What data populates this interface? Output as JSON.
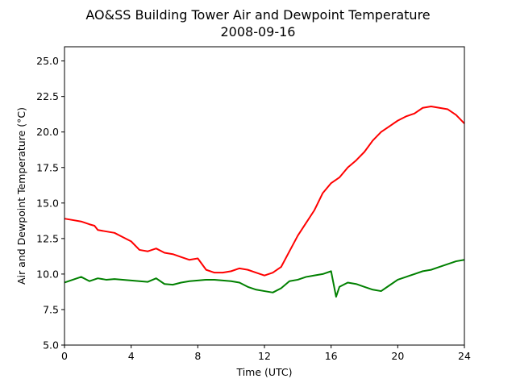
{
  "chart_data": {
    "type": "line",
    "title": "AO&SS Building Tower Air and Dewpoint Temperature",
    "subtitle": "2008-09-16",
    "xlabel": "Time (UTC)",
    "ylabel": "Air and Dewpoint Temperature (°C)",
    "xlim": [
      0,
      24
    ],
    "ylim": [
      5.0,
      26.0
    ],
    "xticks": [
      0,
      4,
      8,
      12,
      16,
      20,
      24
    ],
    "xtick_labels": [
      "0",
      "4",
      "8",
      "12",
      "16",
      "20",
      "24"
    ],
    "yticks": [
      5.0,
      7.5,
      10.0,
      12.5,
      15.0,
      17.5,
      20.0,
      22.5,
      25.0
    ],
    "ytick_labels": [
      "5.0",
      "7.5",
      "10.0",
      "12.5",
      "15.0",
      "17.5",
      "20.0",
      "22.5",
      "25.0"
    ],
    "grid": false,
    "series": [
      {
        "color": "#ff0000",
        "x": [
          0,
          0.5,
          1.0,
          1.5,
          1.8,
          2.0,
          2.5,
          3.0,
          3.5,
          4.0,
          4.5,
          5.0,
          5.5,
          6.0,
          6.5,
          7.0,
          7.5,
          8.0,
          8.5,
          9.0,
          9.5,
          10.0,
          10.5,
          11.0,
          11.5,
          12.0,
          12.5,
          13.0,
          13.5,
          14.0,
          14.5,
          15.0,
          15.5,
          16.0,
          16.5,
          17.0,
          17.5,
          18.0,
          18.5,
          19.0,
          19.5,
          20.0,
          20.5,
          21.0,
          21.5,
          22.0,
          22.5,
          23.0,
          23.5,
          24.0
        ],
        "y": [
          13.9,
          13.8,
          13.7,
          13.5,
          13.4,
          13.1,
          13.0,
          12.9,
          12.6,
          12.3,
          11.7,
          11.6,
          11.8,
          11.5,
          11.4,
          11.2,
          11.0,
          11.1,
          10.3,
          10.1,
          10.1,
          10.2,
          10.4,
          10.3,
          10.1,
          9.9,
          10.1,
          10.5,
          11.6,
          12.7,
          13.6,
          14.5,
          15.7,
          16.4,
          16.8,
          17.5,
          18.0,
          18.6,
          19.4,
          20.0,
          20.4,
          20.8,
          21.1,
          21.3,
          21.7,
          21.8,
          21.7,
          21.6,
          21.2,
          20.6
        ]
      },
      {
        "color": "#008000",
        "x": [
          0,
          0.5,
          1.0,
          1.5,
          2.0,
          2.5,
          3.0,
          3.5,
          4.0,
          4.5,
          5.0,
          5.5,
          6.0,
          6.5,
          7.0,
          7.5,
          8.0,
          8.5,
          9.0,
          9.5,
          10.0,
          10.5,
          11.0,
          11.5,
          12.0,
          12.5,
          13.0,
          13.5,
          14.0,
          14.5,
          15.0,
          15.5,
          16.0,
          16.3,
          16.5,
          17.0,
          17.5,
          18.0,
          18.5,
          19.0,
          19.5,
          20.0,
          20.5,
          21.0,
          21.5,
          22.0,
          22.5,
          23.0,
          23.5,
          24.0
        ],
        "y": [
          9.4,
          9.6,
          9.8,
          9.5,
          9.7,
          9.6,
          9.65,
          9.6,
          9.55,
          9.5,
          9.45,
          9.7,
          9.3,
          9.25,
          9.4,
          9.5,
          9.55,
          9.6,
          9.6,
          9.55,
          9.5,
          9.4,
          9.1,
          8.9,
          8.8,
          8.7,
          9.0,
          9.5,
          9.6,
          9.8,
          9.9,
          10.0,
          10.2,
          8.4,
          9.1,
          9.4,
          9.3,
          9.1,
          8.9,
          8.8,
          9.2,
          9.6,
          9.8,
          10.0,
          10.2,
          10.3,
          10.5,
          10.7,
          10.9,
          11.0
        ]
      }
    ]
  }
}
